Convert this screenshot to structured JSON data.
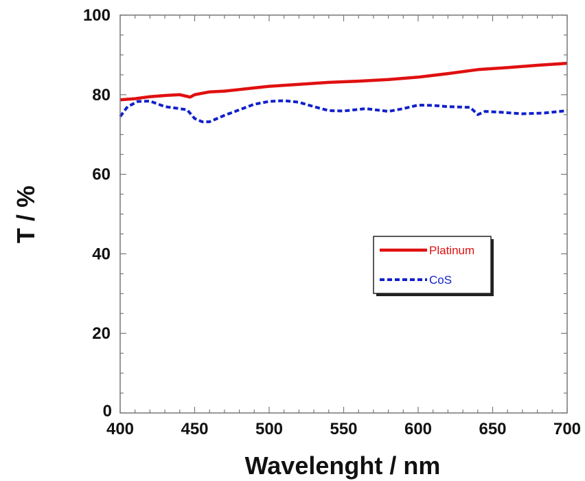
{
  "chart_data": {
    "type": "line",
    "xlabel": "Wavelenght / nm",
    "ylabel": "T / %",
    "xlim": [
      400,
      700
    ],
    "ylim": [
      0,
      100
    ],
    "xticks": [
      400,
      450,
      500,
      550,
      600,
      650,
      700
    ],
    "yticks": [
      0,
      20,
      40,
      60,
      80,
      100
    ],
    "grid": false,
    "legend_position": "center-right",
    "series": [
      {
        "name": "Platinum",
        "color": "#e01010",
        "style": "solid",
        "x": [
          400,
          410,
          420,
          430,
          440,
          447,
          450,
          460,
          470,
          480,
          500,
          520,
          540,
          560,
          580,
          600,
          620,
          640,
          660,
          680,
          700
        ],
        "y": [
          78.7,
          79.0,
          79.5,
          79.8,
          80.0,
          79.4,
          80.0,
          80.7,
          80.9,
          81.3,
          82.1,
          82.6,
          83.1,
          83.4,
          83.8,
          84.4,
          85.3,
          86.3,
          86.8,
          87.4,
          87.9
        ]
      },
      {
        "name": "CoS",
        "color": "#1020cc",
        "style": "dashed",
        "x": [
          400,
          405,
          412,
          420,
          430,
          440,
          445,
          450,
          455,
          460,
          470,
          480,
          490,
          500,
          510,
          520,
          530,
          540,
          550,
          565,
          580,
          590,
          600,
          610,
          620,
          635,
          640,
          645,
          655,
          670,
          685,
          700
        ],
        "y": [
          74.5,
          77.0,
          78.3,
          78.4,
          77.0,
          76.5,
          76.2,
          74.0,
          73.2,
          73.2,
          74.8,
          76.2,
          77.6,
          78.3,
          78.5,
          78.1,
          77.0,
          76.0,
          75.9,
          76.5,
          75.8,
          76.5,
          77.4,
          77.3,
          77.0,
          76.8,
          75.0,
          75.8,
          75.6,
          75.2,
          75.4,
          76.0
        ]
      }
    ]
  }
}
